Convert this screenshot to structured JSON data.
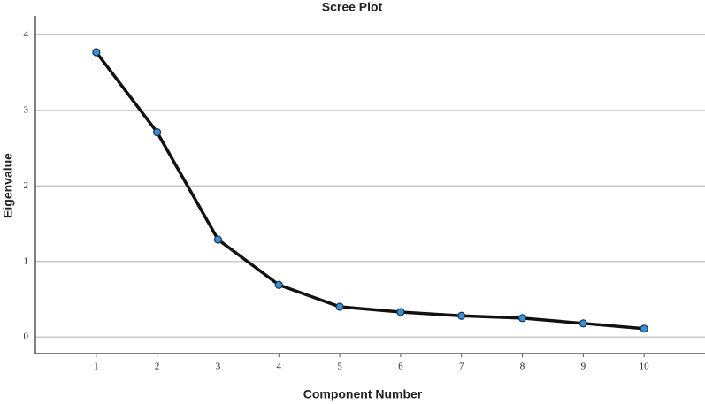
{
  "chart_data": {
    "type": "line",
    "title": "Scree Plot",
    "x_label": "Component Number",
    "y_label": "Eigenvalue",
    "x": [
      1,
      2,
      3,
      4,
      5,
      6,
      7,
      8,
      9,
      10
    ],
    "series": [
      {
        "line_color": "#111111",
        "color": "#3a8fd8",
        "values": [
          3.77,
          2.71,
          1.29,
          0.69,
          0.4,
          0.33,
          0.28,
          0.25,
          0.18,
          0.11
        ]
      }
    ],
    "xlim": [
      0,
      11
    ],
    "xticks": [
      1,
      2,
      3,
      4,
      5,
      6,
      7,
      8,
      9,
      10
    ],
    "ylim": [
      -0.22,
      4.25
    ],
    "yticks": [
      0,
      1,
      2,
      3,
      4
    ],
    "grid": true
  }
}
